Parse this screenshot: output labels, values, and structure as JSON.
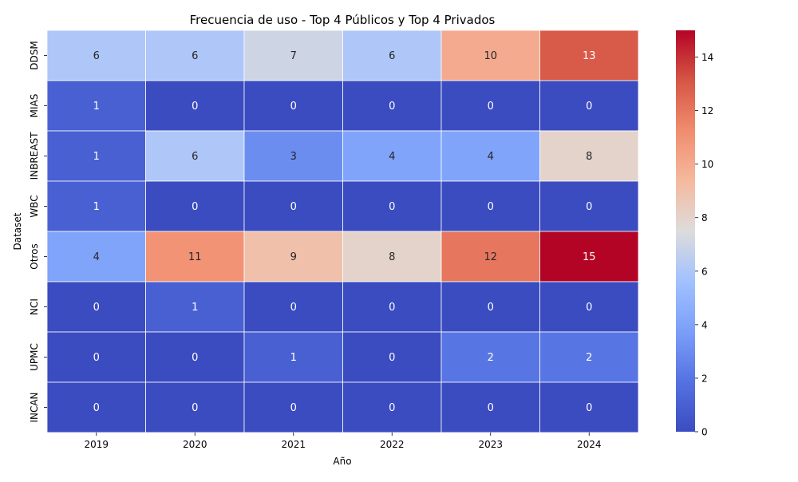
{
  "chart_data": {
    "type": "heatmap",
    "title": "Frecuencia de uso - Top 4 Públicos y Top 4 Privados",
    "xlabel": "Año",
    "ylabel": "Dataset",
    "x": [
      "2019",
      "2020",
      "2021",
      "2022",
      "2023",
      "2024"
    ],
    "y": [
      "DDSM",
      "MIAS",
      "INBREAST",
      "WBC",
      "Otros",
      "NCI",
      "UPMC",
      "INCAN"
    ],
    "values": [
      [
        6,
        6,
        7,
        6,
        10,
        13
      ],
      [
        1,
        0,
        0,
        0,
        0,
        0
      ],
      [
        1,
        6,
        3,
        4,
        4,
        8
      ],
      [
        1,
        0,
        0,
        0,
        0,
        0
      ],
      [
        4,
        11,
        9,
        8,
        12,
        15
      ],
      [
        0,
        1,
        0,
        0,
        0,
        0
      ],
      [
        0,
        0,
        1,
        0,
        2,
        2
      ],
      [
        0,
        0,
        0,
        0,
        0,
        0
      ]
    ],
    "colorbar": {
      "range": [
        0,
        15
      ],
      "ticks": [
        "0",
        "2",
        "4",
        "6",
        "8",
        "10",
        "12",
        "14"
      ],
      "colormap": "coolwarm"
    },
    "annotations": true,
    "grid": false,
    "colors": {
      "low": "#3b4cc0",
      "mid": "#dddcdc",
      "high": "#b40426",
      "cell_border": "#ffffff"
    }
  }
}
